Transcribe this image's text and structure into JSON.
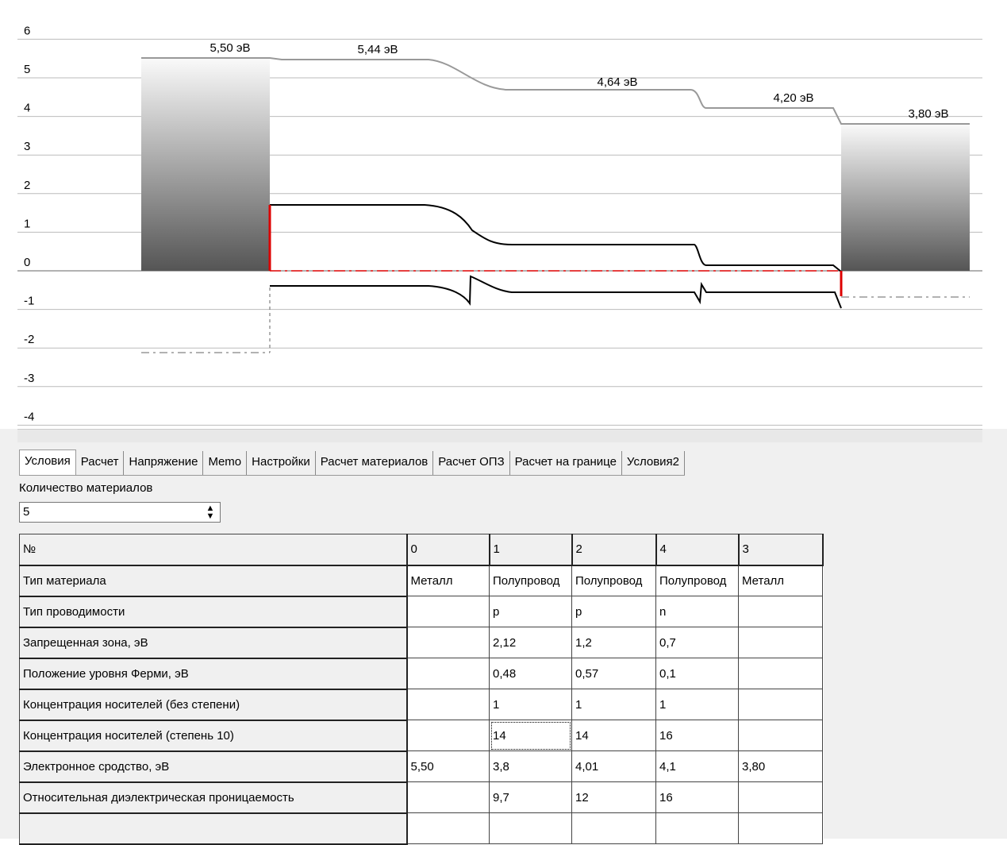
{
  "chart": {
    "yticks": [
      6,
      5,
      4,
      3,
      2,
      1,
      0,
      -1,
      -2,
      -3,
      -4
    ],
    "annotations": [
      "5,50 эВ",
      "5,44 эВ",
      "4,64 эВ",
      "4,20 эВ",
      "3,80 эВ"
    ]
  },
  "tabs": [
    "Условия",
    "Расчет",
    "Напряжение",
    "Memo",
    "Настройки",
    "Расчет материалов",
    "Расчет ОПЗ",
    "Расчет на границе",
    "Условия2"
  ],
  "materials_label": "Количество материалов",
  "materials_count": 5,
  "table": {
    "header": [
      "№",
      "0",
      "1",
      "2",
      "4",
      "3"
    ],
    "rows": [
      [
        "Тип материала",
        "Металл",
        "Полупровод",
        "Полупровод",
        "Полупровод",
        "Металл"
      ],
      [
        "Тип проводимости",
        null,
        "p",
        "p",
        "n",
        null
      ],
      [
        "Запрещенная зона, эВ",
        null,
        "2,12",
        "1,2",
        "0,7",
        null
      ],
      [
        "Положение уровня Ферми, эВ",
        null,
        "0,48",
        "0,57",
        "0,1",
        null
      ],
      [
        "Концентрация носителей (без степени)",
        null,
        "1",
        "1",
        "1",
        null
      ],
      [
        "Концентрация носителей (степень 10)",
        null,
        "14",
        "14",
        "16",
        null
      ],
      [
        "Электронное сродство, эВ",
        "5,50",
        "3,8",
        "4,01",
        "4,1",
        "3,80"
      ],
      [
        "Относительная диэлектрическая проницаемость",
        null,
        "9,7",
        "12",
        "16",
        null
      ]
    ]
  }
}
